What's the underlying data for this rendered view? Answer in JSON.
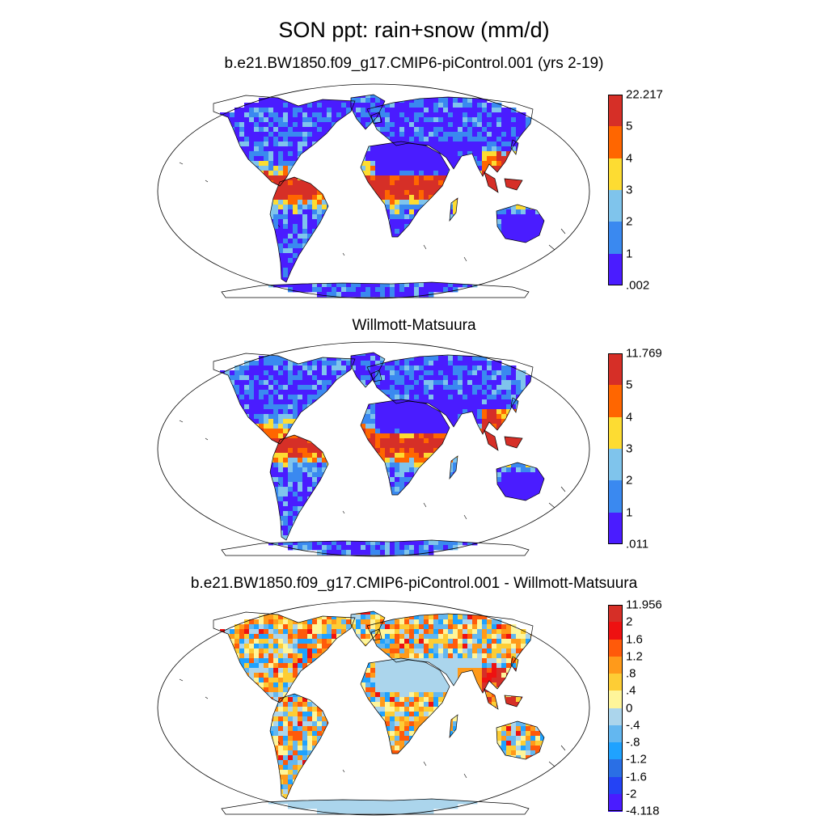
{
  "title": "SON ppt: rain+snow (mm/d)",
  "panels": [
    {
      "title": "b.e21.BW1850.f09_g17.CMIP6-piControl.001 (yrs 2-19)",
      "colorbar": {
        "labels": [
          "22.217",
          "5",
          "4",
          "3",
          "2",
          "1",
          ".002"
        ],
        "colors": [
          "#d62f27",
          "#ff6600",
          "#fddc32",
          "#7fc4ec",
          "#3a89f0",
          "#4a1cff"
        ]
      }
    },
    {
      "title": "Willmott-Matsuura",
      "colorbar": {
        "labels": [
          "11.769",
          "5",
          "4",
          "3",
          "2",
          "1",
          ".011"
        ],
        "colors": [
          "#d62f27",
          "#ff6600",
          "#fddc32",
          "#7fc4ec",
          "#3a89f0",
          "#4a1cff"
        ]
      }
    },
    {
      "title": "b.e21.BW1850.f09_g17.CMIP6-piControl.001 - Willmott-Matsuura",
      "colorbar": {
        "labels": [
          "11.956",
          "2",
          "1.6",
          "1.2",
          ".8",
          ".4",
          "0",
          "-.4",
          "-.8",
          "-1.2",
          "-1.6",
          "-2",
          "-4.118"
        ],
        "colors": [
          "#d62f27",
          "#ee1111",
          "#ff5a0a",
          "#ff9a1a",
          "#fdcd35",
          "#fef59a",
          "#abd5ec",
          "#63b7f0",
          "#1fa2ff",
          "#2a6fe5",
          "#2443f5",
          "#4a1cff"
        ]
      }
    }
  ],
  "map_colors": {
    "ocean": "#ffffff",
    "outline": "#000000"
  }
}
